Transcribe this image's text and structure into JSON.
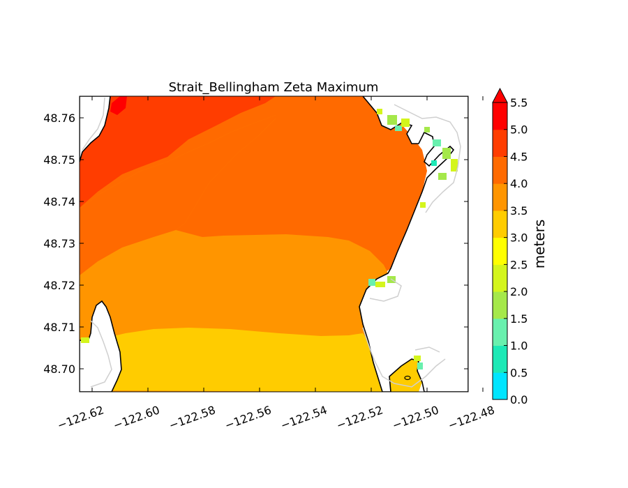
{
  "title": "Strait_Bellingham Zeta Maximum",
  "colorbar": {
    "label": "meters",
    "levels": [
      "0.0",
      "0.5",
      "1.0",
      "1.5",
      "2.0",
      "2.5",
      "3.0",
      "3.5",
      "4.0",
      "4.5",
      "5.0",
      "5.5"
    ],
    "colors": [
      "#00e5ff",
      "#1de9b6",
      "#69f0ae",
      "#a5e84a",
      "#d4f51c",
      "#ffff00",
      "#ffcc00",
      "#ff9500",
      "#ff6a00",
      "#ff3d00",
      "#ff0000"
    ],
    "extend": "max"
  },
  "axes": {
    "x_ticks": [
      "−122.62",
      "−122.60",
      "−122.58",
      "−122.56",
      "−122.54",
      "−122.52",
      "−122.50",
      "−122.48"
    ],
    "y_ticks": [
      "48.76",
      "48.75",
      "48.74",
      "48.73",
      "48.72",
      "48.71",
      "48.70"
    ]
  },
  "chart_data": {
    "type": "heatmap",
    "title": "Strait_Bellingham Zeta Maximum",
    "xlabel": "",
    "ylabel": "",
    "xlim": [
      -122.62,
      -122.48
    ],
    "ylim": [
      48.695,
      48.7655
    ],
    "colorbar_label": "meters",
    "colorbar_range": [
      0.0,
      5.5
    ],
    "bands": [
      {
        "range": [
          4.5,
          5.0
        ],
        "region": "northwest"
      },
      {
        "range": [
          4.0,
          4.5
        ],
        "region": "north-central"
      },
      {
        "range": [
          3.5,
          4.0
        ],
        "region": "central"
      },
      {
        "range": [
          3.0,
          3.5
        ],
        "region": "south"
      },
      {
        "range": [
          5.0,
          5.5
        ],
        "region": "far northwest corner"
      },
      {
        "range": [
          0.0,
          3.0
        ],
        "region": "eastern nearshore and intertidal"
      }
    ]
  }
}
